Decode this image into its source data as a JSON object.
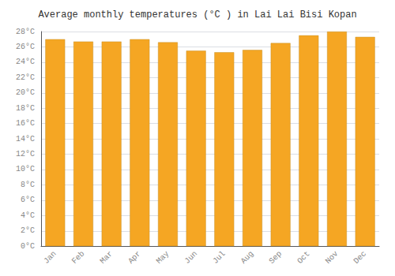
{
  "chart_data": {
    "type": "bar",
    "title": "Average monthly temperatures (°C ) in Lai Lai Bisi Kopan",
    "categories": [
      "Jan",
      "Feb",
      "Mar",
      "Apr",
      "May",
      "Jun",
      "Jul",
      "Aug",
      "Sep",
      "Oct",
      "Nov",
      "Dec"
    ],
    "values": [
      27.0,
      26.7,
      26.7,
      27.0,
      26.6,
      25.5,
      25.3,
      25.6,
      26.5,
      27.5,
      28.0,
      27.3
    ],
    "color": "#F5A623",
    "ylim": [
      0,
      28
    ],
    "yticks": [
      {
        "value": 0,
        "label": "0°C"
      },
      {
        "value": 2,
        "label": "2°C"
      },
      {
        "value": 4,
        "label": "4°C"
      },
      {
        "value": 6,
        "label": "6°C"
      },
      {
        "value": 8,
        "label": "8°C"
      },
      {
        "value": 10,
        "label": "10°C"
      },
      {
        "value": 12,
        "label": "12°C"
      },
      {
        "value": 14,
        "label": "14°C"
      },
      {
        "value": 16,
        "label": "16°C"
      },
      {
        "value": 18,
        "label": "18°C"
      },
      {
        "value": 20,
        "label": "20°C"
      },
      {
        "value": 22,
        "label": "22°C"
      },
      {
        "value": 24,
        "label": "24°C"
      },
      {
        "value": 26,
        "label": "26°C"
      },
      {
        "value": 28,
        "label": "28°C"
      }
    ],
    "grid": true
  }
}
